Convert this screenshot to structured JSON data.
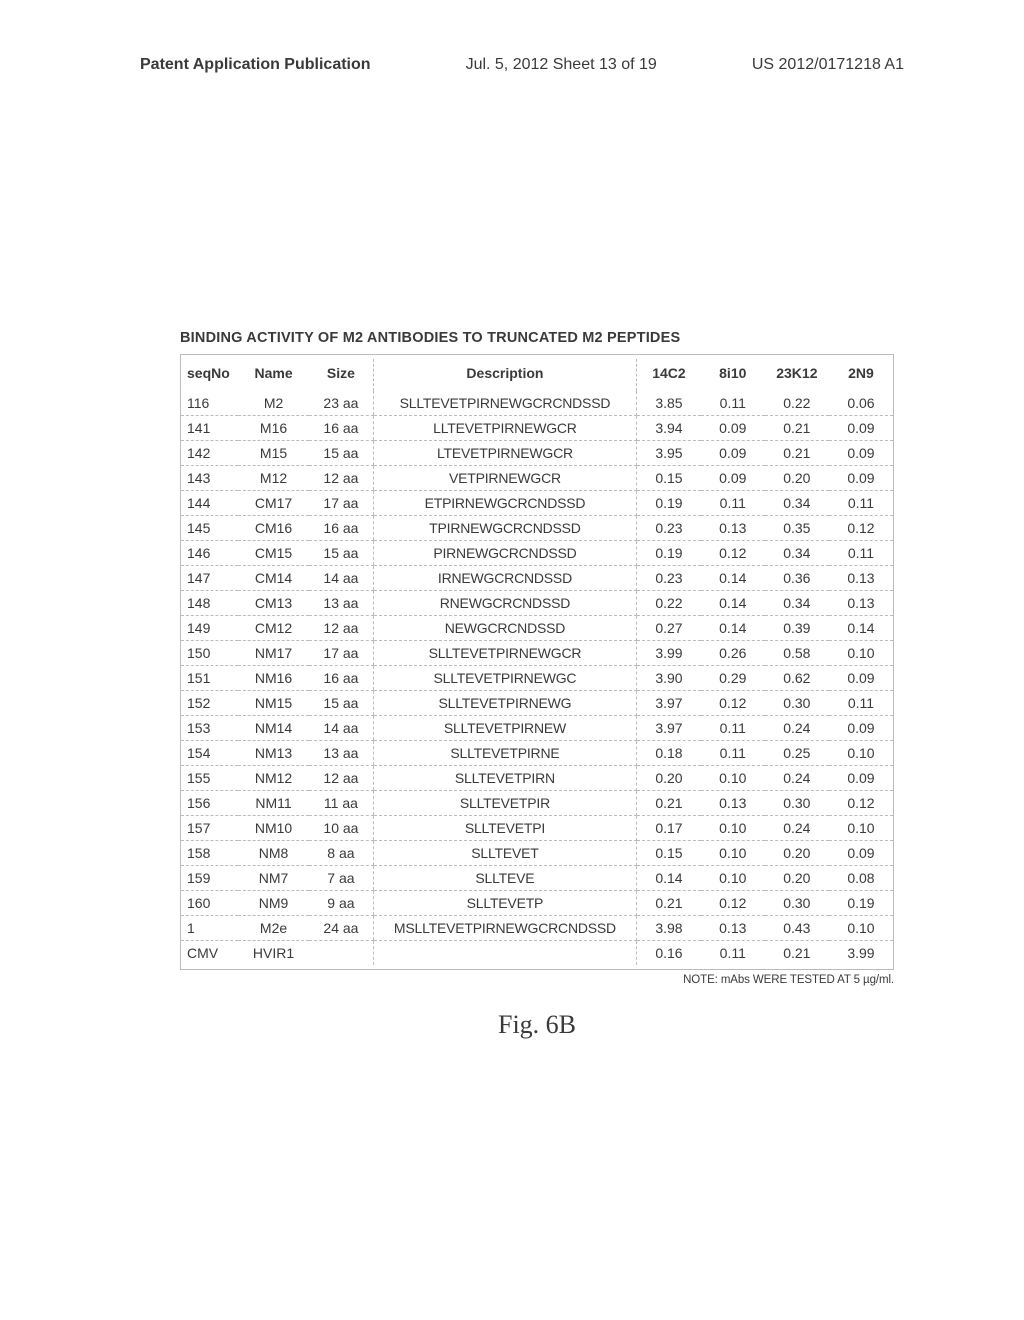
{
  "header": {
    "left": "Patent Application Publication",
    "center": "Jul. 5, 2012   Sheet 13 of 19",
    "right": "US 2012/0171218 A1"
  },
  "table": {
    "title": "BINDING ACTIVITY OF M2 ANTIBODIES TO TRUNCATED M2 PEPTIDES",
    "columns": [
      "seqNo",
      "Name",
      "Size",
      "Description",
      "14C2",
      "8i10",
      "23K12",
      "2N9"
    ],
    "rows": [
      [
        "116",
        "M2",
        "23 aa",
        "SLLTEVETPIRNEWGCRCNDSSD",
        "3.85",
        "0.11",
        "0.22",
        "0.06"
      ],
      [
        "141",
        "M16",
        "16 aa",
        "LLTEVETPIRNEWGCR",
        "3.94",
        "0.09",
        "0.21",
        "0.09"
      ],
      [
        "142",
        "M15",
        "15 aa",
        "LTEVETPIRNEWGCR",
        "3.95",
        "0.09",
        "0.21",
        "0.09"
      ],
      [
        "143",
        "M12",
        "12 aa",
        "VETPIRNEWGCR",
        "0.15",
        "0.09",
        "0.20",
        "0.09"
      ],
      [
        "144",
        "CM17",
        "17 aa",
        "ETPIRNEWGCRCNDSSD",
        "0.19",
        "0.11",
        "0.34",
        "0.11"
      ],
      [
        "145",
        "CM16",
        "16 aa",
        "TPIRNEWGCRCNDSSD",
        "0.23",
        "0.13",
        "0.35",
        "0.12"
      ],
      [
        "146",
        "CM15",
        "15 aa",
        "PIRNEWGCRCNDSSD",
        "0.19",
        "0.12",
        "0.34",
        "0.11"
      ],
      [
        "147",
        "CM14",
        "14 aa",
        "IRNEWGCRCNDSSD",
        "0.23",
        "0.14",
        "0.36",
        "0.13"
      ],
      [
        "148",
        "CM13",
        "13 aa",
        "RNEWGCRCNDSSD",
        "0.22",
        "0.14",
        "0.34",
        "0.13"
      ],
      [
        "149",
        "CM12",
        "12 aa",
        "NEWGCRCNDSSD",
        "0.27",
        "0.14",
        "0.39",
        "0.14"
      ],
      [
        "150",
        "NM17",
        "17 aa",
        "SLLTEVETPIRNEWGCR",
        "3.99",
        "0.26",
        "0.58",
        "0.10"
      ],
      [
        "151",
        "NM16",
        "16 aa",
        "SLLTEVETPIRNEWGC",
        "3.90",
        "0.29",
        "0.62",
        "0.09"
      ],
      [
        "152",
        "NM15",
        "15 aa",
        "SLLTEVETPIRNEWG",
        "3.97",
        "0.12",
        "0.30",
        "0.11"
      ],
      [
        "153",
        "NM14",
        "14 aa",
        "SLLTEVETPIRNEW",
        "3.97",
        "0.11",
        "0.24",
        "0.09"
      ],
      [
        "154",
        "NM13",
        "13 aa",
        "SLLTEVETPIRNE",
        "0.18",
        "0.11",
        "0.25",
        "0.10"
      ],
      [
        "155",
        "NM12",
        "12 aa",
        "SLLTEVETPIRN",
        "0.20",
        "0.10",
        "0.24",
        "0.09"
      ],
      [
        "156",
        "NM11",
        "11 aa",
        "SLLTEVETPIR",
        "0.21",
        "0.13",
        "0.30",
        "0.12"
      ],
      [
        "157",
        "NM10",
        "10 aa",
        "SLLTEVETPI",
        "0.17",
        "0.10",
        "0.24",
        "0.10"
      ],
      [
        "158",
        "NM8",
        "8 aa",
        "SLLTEVET",
        "0.15",
        "0.10",
        "0.20",
        "0.09"
      ],
      [
        "159",
        "NM7",
        "7 aa",
        "SLLTEVE",
        "0.14",
        "0.10",
        "0.20",
        "0.08"
      ],
      [
        "160",
        "NM9",
        "9 aa",
        "SLLTEVETP",
        "0.21",
        "0.12",
        "0.30",
        "0.19"
      ],
      [
        "1",
        "M2e",
        "24 aa",
        "MSLLTEVETPIRNEWGCRCNDSSD",
        "3.98",
        "0.13",
        "0.43",
        "0.10"
      ],
      [
        "CMV",
        "HVIR1",
        "",
        "",
        "0.16",
        "0.11",
        "0.21",
        "3.99"
      ]
    ],
    "note": "NOTE: mAbs WERE TESTED AT 5 µg/ml."
  },
  "figure_label": "Fig. 6B"
}
